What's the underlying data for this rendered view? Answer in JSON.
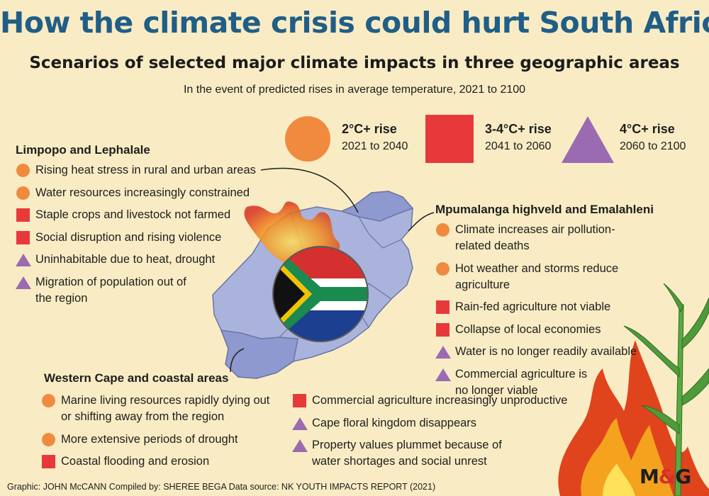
{
  "title": "How the climate crisis could hurt South Africa",
  "subtitle": "Scenarios of selected major climate impacts in three geographic areas",
  "subsubtitle": "In the event of predicted rises in average temperature, 2021 to 2100",
  "colors": {
    "title": "#205e87",
    "circle": "#f08a3e",
    "square": "#e8393a",
    "triangle": "#9b6bb2",
    "map": "#a9b3dc",
    "map_stroke": "#6c74a6",
    "background": "#f9ecc4"
  },
  "legend": [
    {
      "shape": "circle",
      "label": "2°C+ rise",
      "period": "2021 to 2040"
    },
    {
      "shape": "square",
      "label": "3-4°C+ rise",
      "period": "2041 to 2060"
    },
    {
      "shape": "triangle",
      "label": "4°C+ rise",
      "period": "2060 to 2100"
    }
  ],
  "regions": {
    "limpopo": {
      "title": "Limpopo and Lephalale",
      "items": [
        {
          "shape": "circle",
          "text": "Rising heat stress in rural and urban areas"
        },
        {
          "shape": "circle",
          "text": "Water resources increasingly constrained"
        },
        {
          "shape": "square",
          "text": "Staple crops and livestock not farmed"
        },
        {
          "shape": "square",
          "text": "Social disruption and rising violence"
        },
        {
          "shape": "triangle",
          "text": "Uninhabitable due to heat, drought"
        },
        {
          "shape": "triangle",
          "text": "Migration of population out of the region"
        }
      ]
    },
    "mpumalanga": {
      "title": "Mpumalanga highveld and Emalahleni",
      "items": [
        {
          "shape": "circle",
          "text": "Climate increases air pollution-related deaths"
        },
        {
          "shape": "circle",
          "text": "Hot weather and storms reduce agriculture"
        },
        {
          "shape": "square",
          "text": "Rain-fed agriculture not viable"
        },
        {
          "shape": "square",
          "text": "Collapse of local economies"
        },
        {
          "shape": "triangle",
          "text": "Water is no longer readily available"
        },
        {
          "shape": "triangle",
          "text": "Commercial agriculture is no longer viable"
        }
      ]
    },
    "western_cape": {
      "title": "Western Cape and coastal areas",
      "items_left": [
        {
          "shape": "circle",
          "text": "Marine living resources rapidly dying out or shifting away from the region"
        },
        {
          "shape": "circle",
          "text": "More extensive periods of drought"
        },
        {
          "shape": "square",
          "text": "Coastal flooding and erosion"
        }
      ],
      "items_right": [
        {
          "shape": "square",
          "text": "Commercial agriculture increasingly unproductive"
        },
        {
          "shape": "triangle",
          "text": "Cape floral kingdom disappears"
        },
        {
          "shape": "triangle",
          "text": "Property values plummet because of water shortages and social unrest"
        }
      ]
    }
  },
  "footer": "Graphic: JOHN McCANN  Compiled by: SHEREE BEGA  Data source: NK YOUTH IMPACTS REPORT (2021)",
  "logo": {
    "left": "M",
    "amp": "&",
    "right": "G"
  }
}
